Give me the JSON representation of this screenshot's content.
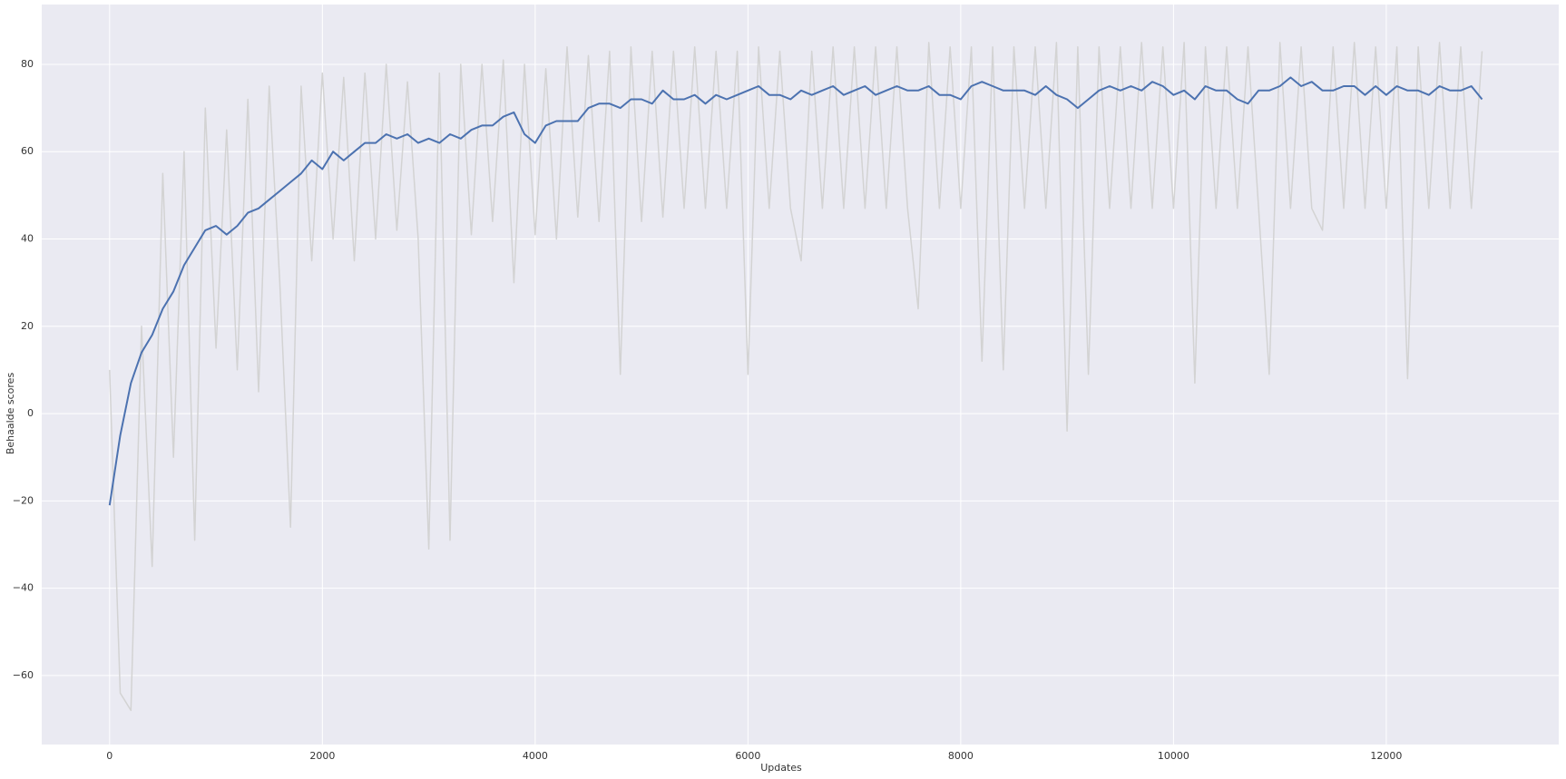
{
  "chart_data": {
    "type": "line",
    "xlabel": "Updates",
    "ylabel": "Behaalde scores",
    "x": [
      0,
      100,
      200,
      300,
      400,
      500,
      600,
      700,
      800,
      900,
      1000,
      1100,
      1200,
      1300,
      1400,
      1500,
      1600,
      1700,
      1800,
      1900,
      2000,
      2100,
      2200,
      2300,
      2400,
      2500,
      2600,
      2700,
      2800,
      2900,
      3000,
      3100,
      3200,
      3300,
      3400,
      3500,
      3600,
      3700,
      3800,
      3900,
      4000,
      4100,
      4200,
      4300,
      4400,
      4500,
      4600,
      4700,
      4800,
      4900,
      5000,
      5100,
      5200,
      5300,
      5400,
      5500,
      5600,
      5700,
      5800,
      5900,
      6000,
      6100,
      6200,
      6300,
      6400,
      6500,
      6600,
      6700,
      6800,
      6900,
      7000,
      7100,
      7200,
      7300,
      7400,
      7500,
      7600,
      7700,
      7800,
      7900,
      8000,
      8100,
      8200,
      8300,
      8400,
      8500,
      8600,
      8700,
      8800,
      8900,
      9000,
      9100,
      9200,
      9300,
      9400,
      9500,
      9600,
      9700,
      9800,
      9900,
      10000,
      10100,
      10200,
      10300,
      10400,
      10500,
      10600,
      10700,
      10800,
      10900,
      11000,
      11100,
      11200,
      11300,
      11400,
      11500,
      11600,
      11700,
      11800,
      11900,
      12000,
      12100,
      12200,
      12300,
      12400,
      12500,
      12600,
      12700,
      12800,
      12900
    ],
    "series": [
      {
        "color": "#d3d3d3",
        "values": [
          10,
          -64,
          -68,
          20,
          -35,
          55,
          -10,
          60,
          -29,
          70,
          15,
          65,
          10,
          72,
          5,
          75,
          30,
          -26,
          75,
          35,
          78,
          40,
          77,
          35,
          78,
          40,
          80,
          42,
          76,
          40,
          -31,
          78,
          -29,
          80,
          41,
          80,
          44,
          81,
          30,
          80,
          41,
          79,
          40,
          84,
          45,
          82,
          44,
          83,
          9,
          84,
          44,
          83,
          45,
          83,
          47,
          84,
          47,
          83,
          47,
          83,
          9,
          84,
          47,
          83,
          47,
          35,
          83,
          47,
          84,
          47,
          84,
          47,
          84,
          47,
          84,
          47,
          24,
          85,
          47,
          84,
          47,
          84,
          12,
          84,
          10,
          84,
          47,
          84,
          47,
          85,
          -4,
          84,
          9,
          84,
          47,
          84,
          47,
          85,
          47,
          84,
          47,
          85,
          7,
          84,
          47,
          84,
          47,
          84,
          47,
          9,
          85,
          47,
          84,
          47,
          42,
          84,
          47,
          85,
          47,
          84,
          47,
          84,
          8,
          84,
          47,
          85,
          47,
          84,
          47,
          83
        ]
      },
      {
        "color": "#4c72b0",
        "values": [
          -21,
          -5,
          7,
          14,
          18,
          24,
          28,
          34,
          38,
          42,
          43,
          41,
          43,
          46,
          47,
          49,
          51,
          53,
          55,
          58,
          56,
          60,
          58,
          60,
          62,
          62,
          64,
          63,
          64,
          62,
          63,
          62,
          64,
          63,
          65,
          66,
          66,
          68,
          69,
          64,
          62,
          66,
          67,
          67,
          67,
          70,
          71,
          71,
          70,
          72,
          72,
          71,
          74,
          72,
          72,
          73,
          71,
          73,
          72,
          73,
          74,
          75,
          73,
          73,
          72,
          74,
          73,
          74,
          75,
          73,
          74,
          75,
          73,
          74,
          75,
          74,
          74,
          75,
          73,
          73,
          72,
          75,
          76,
          75,
          74,
          74,
          74,
          73,
          75,
          73,
          72,
          70,
          72,
          74,
          75,
          74,
          75,
          74,
          76,
          75,
          73,
          74,
          72,
          75,
          74,
          74,
          72,
          71,
          74,
          74,
          75,
          77,
          75,
          76,
          74,
          74,
          75,
          75,
          73,
          75,
          73,
          75,
          74,
          74,
          73,
          75,
          74,
          74,
          75,
          72
        ]
      }
    ],
    "xlim": [
      -638,
      13621
    ],
    "ylim": [
      -75.8,
      93.7
    ],
    "xticks": [
      0,
      2000,
      4000,
      6000,
      8000,
      10000,
      12000
    ],
    "yticks": [
      {
        "value": -60,
        "label": "−60"
      },
      {
        "value": -40,
        "label": "−40"
      },
      {
        "value": -20,
        "label": "−20"
      },
      0,
      20,
      40,
      60,
      80
    ],
    "grid": true,
    "background": "#eaeaf2"
  }
}
